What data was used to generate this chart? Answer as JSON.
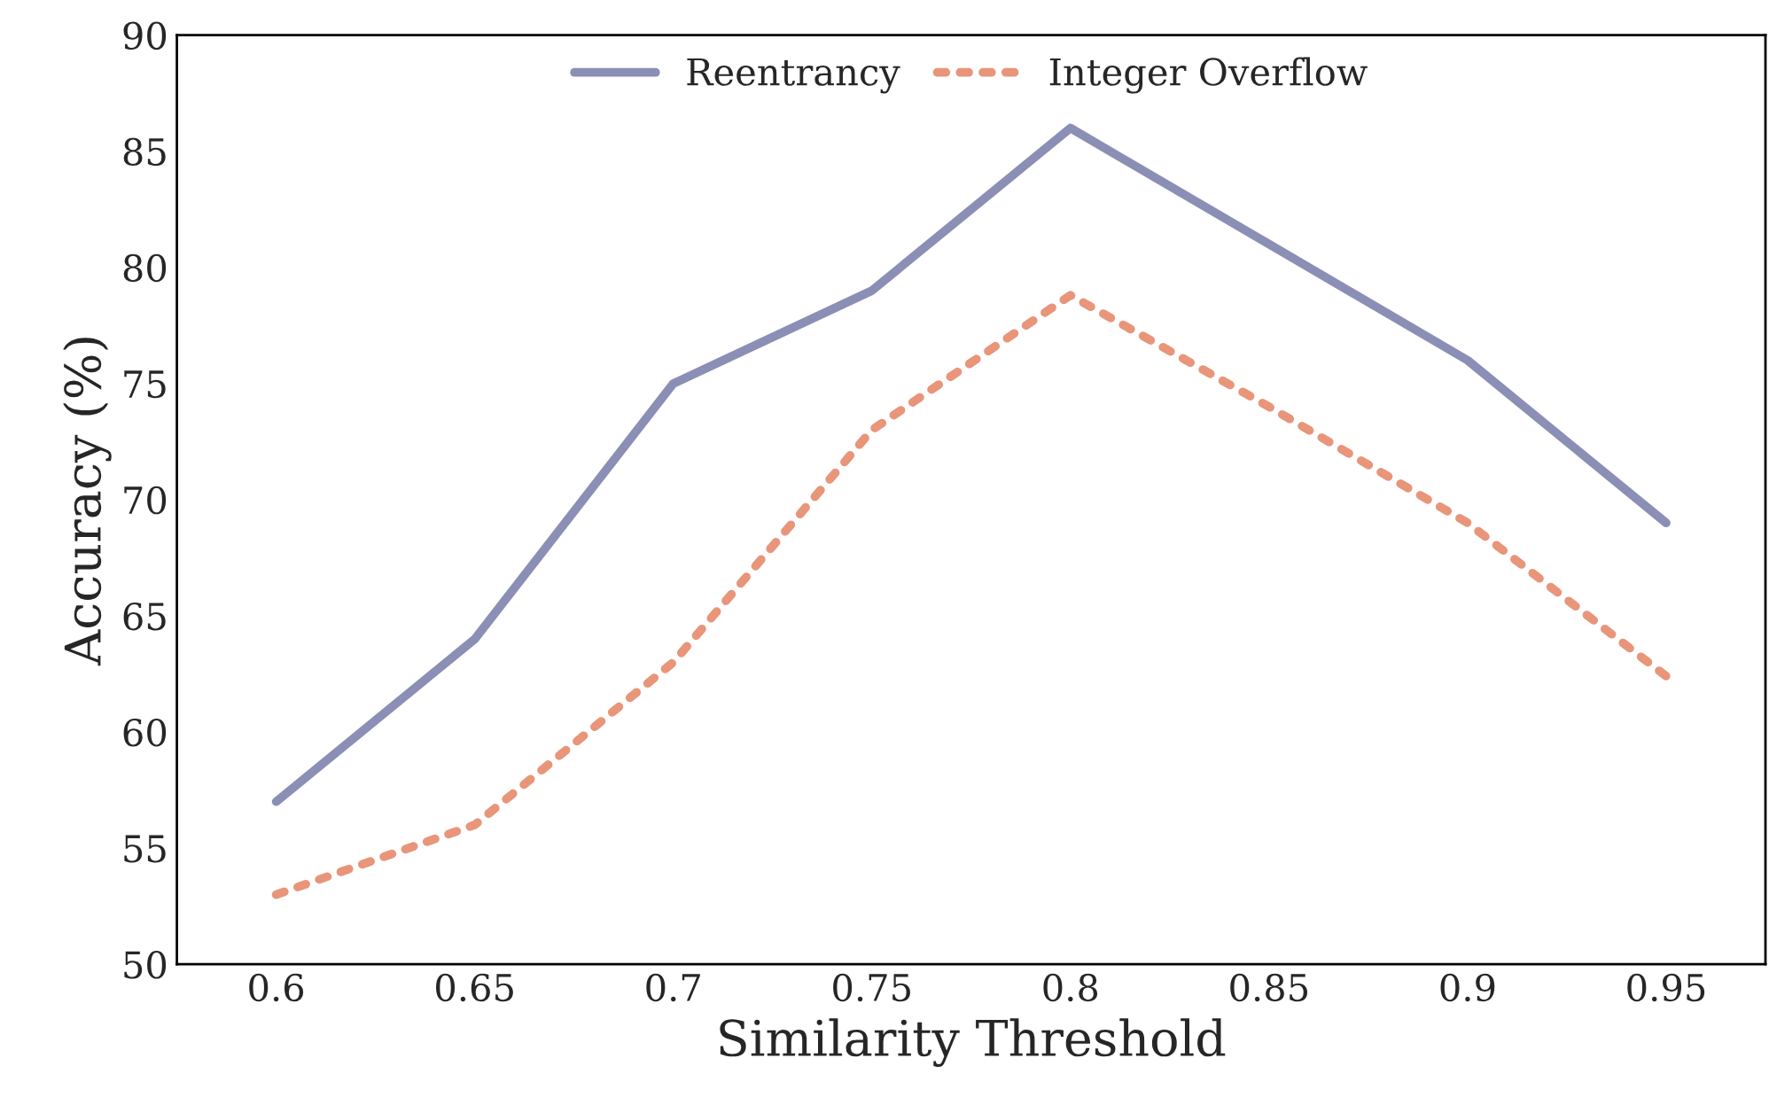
{
  "chart_data": {
    "type": "line",
    "xlabel": "Similarity Threshold",
    "ylabel": "Accuracy (%)",
    "categories": [
      "0.6",
      "0.65",
      "0.7",
      "0.75",
      "0.8",
      "0.85",
      "0.9",
      "0.95"
    ],
    "series": [
      {
        "name": "Reentrancy",
        "color": "#8b8fb5",
        "line_style": "solid",
        "values": [
          57,
          64,
          75,
          79,
          86,
          81,
          76,
          69
        ]
      },
      {
        "name": "Integer Overflow",
        "color": "#e8957a",
        "line_style": "dotted",
        "values": [
          53,
          56,
          63,
          73,
          78.8,
          74,
          69,
          62.4
        ]
      }
    ],
    "ylim": [
      50,
      90
    ],
    "yticks": [
      50,
      55,
      60,
      65,
      70,
      75,
      80,
      85,
      90
    ],
    "grid": false,
    "legend": "top",
    "marker": "none"
  }
}
